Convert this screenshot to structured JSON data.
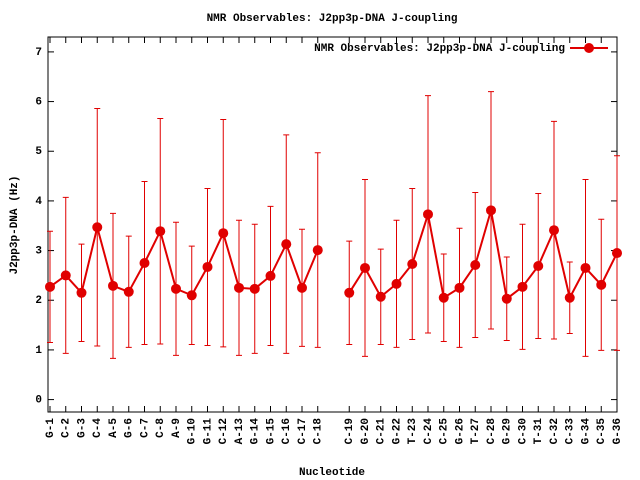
{
  "chart_data": {
    "type": "line",
    "title": "NMR Observables: J2pp3p-DNA J-coupling",
    "x_label": "Nucleotide",
    "y_label": "J2pp3p-DNA (Hz)",
    "categories": [
      "G-1",
      "C-2",
      "G-3",
      "C-4",
      "A-5",
      "G-6",
      "C-7",
      "C-8",
      "A-9",
      "G-10",
      "G-11",
      "C-12",
      "A-13",
      "G-14",
      "G-15",
      "C-16",
      "C-17",
      "C-18",
      null,
      "C-19",
      "G-20",
      "C-21",
      "G-22",
      "T-23",
      "C-24",
      "C-25",
      "G-26",
      "T-27",
      "C-28",
      "G-29",
      "C-30",
      "T-31",
      "C-32",
      "C-33",
      "G-34",
      "C-35",
      "G-36"
    ],
    "series": [
      {
        "name": "NMR Observables: J2pp3p-DNA J-coupling",
        "color": "#e00000",
        "values": [
          2.27,
          2.5,
          2.15,
          3.47,
          2.29,
          2.17,
          2.75,
          3.39,
          2.23,
          2.1,
          2.67,
          3.35,
          2.25,
          2.23,
          2.49,
          3.13,
          2.25,
          3.01,
          null,
          2.15,
          2.65,
          2.07,
          2.33,
          2.73,
          3.73,
          2.05,
          2.25,
          2.71,
          3.81,
          2.03,
          2.27,
          2.69,
          3.41,
          2.05,
          2.65,
          2.31,
          2.95
        ],
        "errors": [
          1.12,
          1.57,
          0.98,
          2.39,
          1.46,
          1.12,
          1.64,
          2.27,
          1.34,
          0.99,
          1.58,
          2.29,
          1.36,
          1.3,
          1.4,
          2.2,
          1.18,
          1.96,
          null,
          1.04,
          1.78,
          0.96,
          1.28,
          1.52,
          2.39,
          0.88,
          1.2,
          1.46,
          2.39,
          0.84,
          1.26,
          1.46,
          2.19,
          0.72,
          1.78,
          1.32,
          1.96
        ]
      }
    ],
    "ylim": [
      -0.25,
      7.3
    ],
    "yticks": [
      0,
      1,
      2,
      3,
      4,
      5,
      6,
      7
    ],
    "legend": "top-right"
  }
}
